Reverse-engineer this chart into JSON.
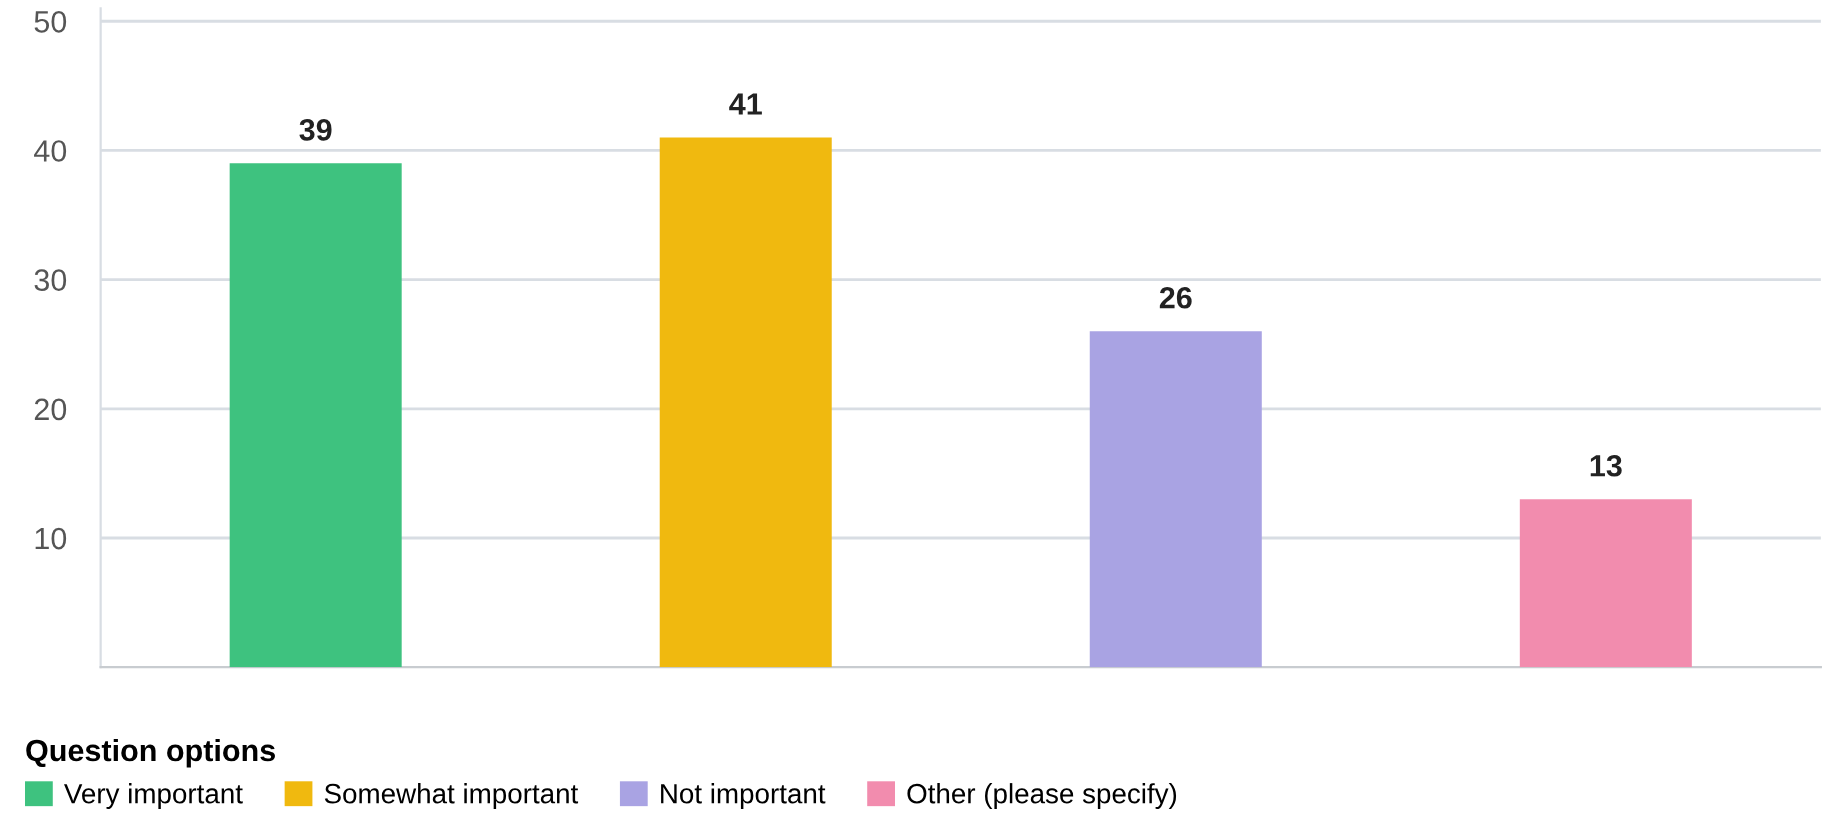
{
  "chart_data": {
    "type": "bar",
    "legend_title": "Question options",
    "categories": [
      null,
      null,
      null,
      null
    ],
    "series": [
      {
        "name": "Very important",
        "color": "#3ec27f",
        "values": [
          39,
          null,
          null,
          null
        ]
      },
      {
        "name": "Somewhat important",
        "color": "#f0b90f",
        "values": [
          null,
          41,
          null,
          null
        ]
      },
      {
        "name": "Not important",
        "color": "#a9a3e3",
        "values": [
          null,
          null,
          26,
          null
        ]
      },
      {
        "name": "Other (please specify)",
        "color": "#f28cae",
        "values": [
          null,
          null,
          null,
          13
        ]
      }
    ],
    "ylim": [
      0,
      51
    ],
    "yticks": [
      10,
      20,
      30,
      40,
      50
    ],
    "grid": "y",
    "legend": "bottom",
    "data_labels": true,
    "tick_labels": "y"
  }
}
